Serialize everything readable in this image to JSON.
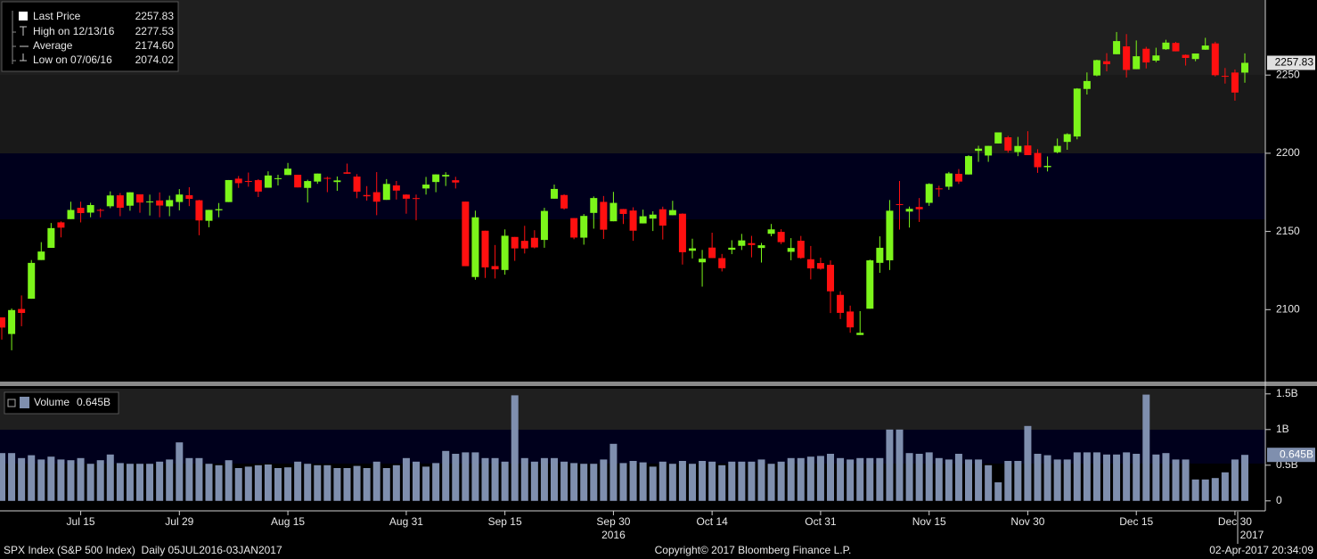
{
  "chart_data": {
    "type": "candlestick",
    "categories": [
      null,
      null,
      null,
      null,
      null,
      null,
      null,
      null,
      "Jul 15",
      null,
      null,
      null,
      null,
      null,
      null,
      null,
      null,
      null,
      "Jul 29",
      null,
      null,
      null,
      null,
      null,
      null,
      null,
      null,
      null,
      null,
      "Aug 15",
      null,
      null,
      null,
      null,
      null,
      null,
      null,
      null,
      null,
      null,
      null,
      "Aug 31",
      null,
      null,
      null,
      null,
      null,
      null,
      null,
      null,
      null,
      "Sep 15",
      null,
      null,
      null,
      null,
      null,
      null,
      null,
      null,
      null,
      null,
      "Sep 30",
      null,
      null,
      null,
      null,
      null,
      null,
      null,
      null,
      null,
      "Oct 14",
      null,
      null,
      null,
      null,
      null,
      null,
      null,
      null,
      null,
      null,
      "Oct 31",
      null,
      null,
      null,
      null,
      null,
      null,
      null,
      null,
      null,
      null,
      "Nov 15",
      null,
      null,
      null,
      null,
      null,
      null,
      null,
      null,
      null,
      "Nov 30",
      null,
      null,
      null,
      null,
      null,
      null,
      null,
      null,
      null,
      null,
      "Dec 15",
      null,
      null,
      null,
      null,
      null,
      null,
      null,
      null,
      null,
      "Dec 30",
      null
    ],
    "x_year_labels": [
      "2016",
      "2017"
    ],
    "open": [
      2095.05,
      2084.43,
      2100.42,
      2106.97,
      2131.72,
      2139.5,
      2155.81,
      2157.88,
      2165.13,
      2162.04,
      2163.79,
      2166.1,
      2173.11,
      2166.47,
      2173.71,
      2168.97,
      2169.81,
      2166.05,
      2168.83,
      2173.15,
      2169.94,
      2156.81,
      2163.51,
      2168.79,
      2183.76,
      2182.24,
      2182.81,
      2177.97,
      2183.74,
      2186.08,
      2186.24,
      2177.84,
      2181.9,
      2184.24,
      2181.58,
      2187.81,
      2185.09,
      2173.29,
      2175.1,
      2170.19,
      2179.45,
      2173.56,
      2171.33,
      2177.49,
      2181.61,
      2185.17,
      2182.76,
      2169.08,
      2120.86,
      2150.47,
      2127.86,
      2125.36,
      2146.48,
      2143.99,
      2145.94,
      2144.58,
      2170.94,
      2173.29,
      2158.54,
      2146.04,
      2161.85,
      2168.9,
      2156.51,
      2164.33,
      2163.37,
      2155.15,
      2158.22,
      2164.19,
      2160.39,
      2161.35,
      2137.67,
      2130.26,
      2139.68,
      2132.95,
      2138.31,
      2140.81,
      2142.51,
      2139.43,
      2148.5,
      2149.72,
      2136.97,
      2144.06,
      2132.23,
      2129.78,
      2128.68,
      2109.43,
      2098.8,
      2083.79,
      2100.59,
      2129.92,
      2131.56,
      2167.49,
      2162.71,
      2165.64,
      2168.29,
      2177.53,
      2178.61,
      2186.85,
      2186.43,
      2201.56,
      2198.55,
      2206.27,
      2210.21,
      2200.76,
      2204.97,
      2200.17,
      2191.12,
      2200.65,
      2207.26,
      2210.72,
      2241.13,
      2249.73,
      2258.83,
      2263.32,
      2268.35,
      2253.77,
      2266.81,
      2259.24,
      2266.5,
      2270.54,
      2262.93,
      2260.25,
      2266.23,
      2270.23,
      2249.5,
      2251.61,
      2251.57
    ],
    "high": [
      2095.05,
      2100.72,
      2109.08,
      2131.71,
      2143.16,
      2155.4,
      2156.45,
      2169.05,
      2169.05,
      2168.35,
      2164.63,
      2175.63,
      2174.56,
      2175.11,
      2173.71,
      2173.54,
      2174.98,
      2172.85,
      2177.09,
      2178.29,
      2170.2,
      2163.79,
      2168.19,
      2182.87,
      2185.44,
      2187.66,
      2183.41,
      2188.45,
      2186.28,
      2193.81,
      2186.24,
      2183.08,
      2187.03,
      2185,
      2185.15,
      2193.42,
      2186.66,
      2179,
      2187.94,
      2183.48,
      2182.27,
      2173.79,
      2173.56,
      2184.87,
      2186.57,
      2187.87,
      2184.94,
      2169.08,
      2163.3,
      2150.47,
      2141.33,
      2151.31,
      2146.48,
      2153.61,
      2150.8,
      2165.11,
      2179.99,
      2173.75,
      2158.54,
      2161.13,
      2172.4,
      2172.67,
      2175.3,
      2164.41,
      2165.46,
      2163.95,
      2162.93,
      2165.86,
      2169.6,
      2161.56,
      2145.36,
      2138.19,
      2149.19,
      2135.61,
      2144.38,
      2148.44,
      2147.18,
      2142.63,
      2154.79,
      2151.44,
      2145.73,
      2147.13,
      2140.72,
      2133.25,
      2131.45,
      2111.76,
      2102.56,
      2099.07,
      2132,
      2146.87,
      2170.1,
      2182.3,
      2165.92,
      2171.36,
      2180.84,
      2179.22,
      2188.06,
      2189.89,
      2198.7,
      2204.8,
      2204.72,
      2213.35,
      2211.14,
      2210.46,
      2214.1,
      2202.6,
      2197.95,
      2209.42,
      2212.78,
      2241.63,
      2251.69,
      2259.8,
      2264.03,
      2277.53,
      2276.2,
      2272.12,
      2268.05,
      2267.47,
      2272.56,
      2271.23,
      2263.18,
      2263.79,
      2273.82,
      2271.31,
      2254.51,
      2253.58,
      2263.88
    ],
    "low": [
      2080.86,
      2074.02,
      2089.39,
      2106.97,
      2131.72,
      2139.5,
      2146.21,
      2157.88,
      2155.79,
      2159.07,
      2159.01,
      2164.89,
      2159.75,
      2163.24,
      2161.95,
      2160.18,
      2159.07,
      2159.74,
      2163.49,
      2166.21,
      2147.58,
      2152.7,
      2159.07,
      2168.79,
      2177.85,
      2178.61,
      2172,
      2177.97,
      2179.42,
      2186.08,
      2178.14,
      2168.5,
      2180.46,
      2175.13,
      2175.96,
      2186.8,
      2171.25,
      2169.74,
      2160.39,
      2170.19,
      2170.41,
      2161.35,
      2157.09,
      2173.59,
      2175.1,
      2179.07,
      2177.49,
      2127.81,
      2119.12,
      2120.27,
      2119.9,
      2122.36,
      2131.2,
      2135.91,
      2139.17,
      2139.57,
      2170.94,
      2163.97,
      2145.04,
      2141.55,
      2151.79,
      2145.2,
      2156.51,
      2154.77,
      2144.01,
      2155.15,
      2150.28,
      2144.85,
      2160.39,
      2128.84,
      2132.77,
      2114.72,
      2132.98,
      2124.43,
      2135.49,
      2138.15,
      2133.44,
      2130.09,
      2146.91,
      2141.93,
      2131.59,
      2132.52,
      2119.36,
      2125.53,
      2097.85,
      2094,
      2085.23,
      2083.79,
      2100.59,
      2123.56,
      2125.35,
      2151.17,
      2152.49,
      2156.08,
      2166.38,
      2172.2,
      2176.65,
      2180.38,
      2186.43,
      2194.51,
      2194.51,
      2206.27,
      2200.36,
      2198.15,
      2198.81,
      2187.44,
      2188.37,
      2199.97,
      2202.21,
      2208.93,
      2237.57,
      2249.23,
      2252.37,
      2263.32,
      2248.44,
      2253.77,
      2254.24,
      2258.21,
      2266.14,
      2265.15,
      2256.08,
      2258.84,
      2266.15,
      2249.11,
      2244.56,
      2233.62,
      2245.13
    ],
    "close": [
      2088.55,
      2099.73,
      2097.9,
      2129.9,
      2137.16,
      2152.14,
      2152.43,
      2163.75,
      2161.74,
      2166.89,
      2163.78,
      2173.02,
      2165.17,
      2175.03,
      2168.48,
      2169.18,
      2166.58,
      2170.06,
      2173.6,
      2170.84,
      2157.03,
      2163.79,
      2164.25,
      2182.87,
      2180.89,
      2181.74,
      2175.49,
      2185.79,
      2184.05,
      2190.15,
      2178.15,
      2182.22,
      2187.02,
      2183.87,
      2182.64,
      2186.9,
      2175.44,
      2172.47,
      2169.04,
      2180.38,
      2176.12,
      2170.95,
      2170.86,
      2179.98,
      2186.48,
      2186.16,
      2181.3,
      2127.81,
      2159.04,
      2127.02,
      2125.77,
      2147.26,
      2139.16,
      2139.12,
      2139.76,
      2163.12,
      2177.18,
      2164.69,
      2146.1,
      2159.93,
      2171.37,
      2151.13,
      2168.27,
      2161.2,
      2150.49,
      2159.73,
      2160.77,
      2153.74,
      2163.66,
      2136.73,
      2139.18,
      2132.55,
      2132.98,
      2126.5,
      2139.6,
      2144.29,
      2141.34,
      2141.16,
      2151.33,
      2143.16,
      2139.43,
      2133.04,
      2126.41,
      2126.15,
      2111.72,
      2097.94,
      2088.66,
      2085.18,
      2131.52,
      2139.56,
      2163.26,
      2167.48,
      2164.45,
      2164.2,
      2180.39,
      2176.94,
      2187.12,
      2181.9,
      2198.18,
      2202.94,
      2204.72,
      2213.35,
      2201.72,
      2204.66,
      2198.81,
      2191.08,
      2191.95,
      2204.71,
      2212.23,
      2241.35,
      2246.19,
      2259.53,
      2256.96,
      2271.72,
      2253.28,
      2262.03,
      2258.07,
      2262.53,
      2270.76,
      2265.18,
      2260.96,
      2263.79,
      2268.88,
      2249.92,
      2249.26,
      2238.83,
      2257.83
    ],
    "up_color": "#7cf51a",
    "down_color": "#ff1010",
    "ylim": [
      2054,
      2298
    ],
    "yticks": [
      2100,
      2150,
      2200,
      2250
    ],
    "summary": [
      {
        "label": "Last Price",
        "value": 2257.83
      },
      {
        "label": "High on 12/13/16",
        "value": 2277.53
      },
      {
        "label": "Average",
        "value": 2174.6,
        "value_label": "2174.60"
      },
      {
        "label": "Low on 07/06/16",
        "value": 2074.02
      }
    ],
    "volume": {
      "label": "Volume",
      "color": "#7f8fae",
      "values": [
        0.67,
        0.67,
        0.6,
        0.64,
        0.58,
        0.62,
        0.58,
        0.57,
        0.6,
        0.52,
        0.57,
        0.65,
        0.53,
        0.52,
        0.52,
        0.52,
        0.55,
        0.58,
        0.82,
        0.6,
        0.6,
        0.52,
        0.5,
        0.57,
        0.46,
        0.48,
        0.5,
        0.51,
        0.46,
        0.47,
        0.55,
        0.52,
        0.5,
        0.5,
        0.46,
        0.46,
        0.49,
        0.46,
        0.55,
        0.46,
        0.5,
        0.6,
        0.55,
        0.48,
        0.53,
        0.7,
        0.66,
        0.68,
        0.68,
        0.6,
        0.6,
        0.55,
        1.48,
        0.6,
        0.55,
        0.6,
        0.6,
        0.55,
        0.53,
        0.52,
        0.52,
        0.58,
        0.8,
        0.53,
        0.56,
        0.54,
        0.48,
        0.55,
        0.52,
        0.56,
        0.52,
        0.56,
        0.55,
        0.5,
        0.55,
        0.55,
        0.55,
        0.58,
        0.52,
        0.55,
        0.6,
        0.6,
        0.62,
        0.63,
        0.66,
        0.6,
        0.58,
        0.6,
        0.6,
        0.6,
        1.0,
        1.0,
        0.67,
        0.66,
        0.68,
        0.6,
        0.58,
        0.66,
        0.58,
        0.58,
        0.5,
        0.26,
        0.56,
        0.56,
        1.05,
        0.66,
        0.64,
        0.58,
        0.58,
        0.68,
        0.68,
        0.68,
        0.65,
        0.65,
        0.68,
        0.66,
        1.49,
        0.65,
        0.67,
        0.58,
        0.58,
        0.3,
        0.3,
        0.32,
        0.4,
        0.58,
        0.645
      ],
      "last": {
        "value": 0.645,
        "label": "0.645B"
      },
      "ylim": [
        -0.14,
        1.56
      ],
      "yticks": [
        0,
        {
          "value": 0.5,
          "label": "0.5B"
        },
        {
          "value": 1,
          "label": "1B"
        },
        {
          "value": 1.5,
          "label": "1.5B"
        }
      ]
    }
  },
  "footer": {
    "left": "SPX Index (S&P 500 Index)  Daily 05JUL2016-03JAN2017",
    "center": "Copyright© 2017 Bloomberg Finance L.P.",
    "right": "02-Apr-2017 20:34:09"
  }
}
